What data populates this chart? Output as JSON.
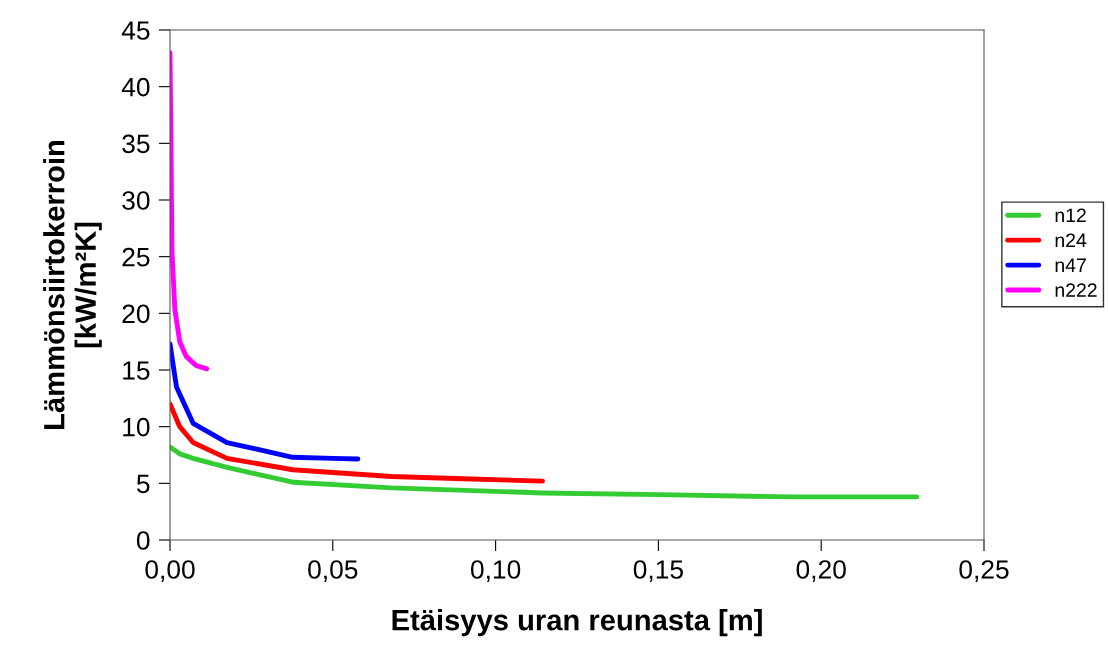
{
  "chart_data": {
    "type": "line",
    "xlabel": "Etäisyys uran reunasta [m]",
    "ylabel": "Lämmönsiirtokerroin\n[kW/m²K]",
    "xlim": [
      0,
      0.25
    ],
    "xticks": [
      {
        "value": 0,
        "label": "0,00"
      },
      {
        "value": 0.05,
        "label": "0,05"
      },
      {
        "value": 0.1,
        "label": "0,10"
      },
      {
        "value": 0.15,
        "label": "0,15"
      },
      {
        "value": 0.2,
        "label": "0,20"
      },
      {
        "value": 0.25,
        "label": "0,25"
      }
    ],
    "ylim": [
      0,
      45
    ],
    "yticks": [
      0,
      5,
      10,
      15,
      20,
      25,
      30,
      35,
      40,
      45
    ],
    "grid": false,
    "legend": "right",
    "marker": "none",
    "line_style": "solid",
    "series": [
      {
        "name": "n12",
        "color": "#33cc33",
        "x": [
          0,
          0.003,
          0.0071,
          0.0175,
          0.0377,
          0.068,
          0.1144,
          0.15,
          0.191,
          0.2294
        ],
        "values": [
          8.2,
          7.6,
          7.2,
          6.4,
          5.1,
          4.6,
          4.15,
          4.0,
          3.8,
          3.8
        ]
      },
      {
        "name": "n24",
        "color": "#ff0000",
        "x": [
          0,
          0.003,
          0.0071,
          0.0175,
          0.0377,
          0.068,
          0.09,
          0.1144
        ],
        "values": [
          12.0,
          10.0,
          8.6,
          7.2,
          6.2,
          5.6,
          5.4,
          5.2
        ]
      },
      {
        "name": "n47",
        "color": "#0000ff",
        "x": [
          0,
          0.002,
          0.0071,
          0.0175,
          0.0377,
          0.05,
          0.0577
        ],
        "values": [
          17.3,
          13.5,
          10.3,
          8.6,
          7.3,
          7.2,
          7.15
        ]
      },
      {
        "name": "n222",
        "color": "#ff00ff",
        "x": [
          0,
          0.0003,
          0.0006,
          0.0015,
          0.003,
          0.005,
          0.008,
          0.0113
        ],
        "values": [
          43.0,
          35.0,
          25.5,
          20.3,
          17.5,
          16.2,
          15.4,
          15.1
        ]
      }
    ]
  }
}
